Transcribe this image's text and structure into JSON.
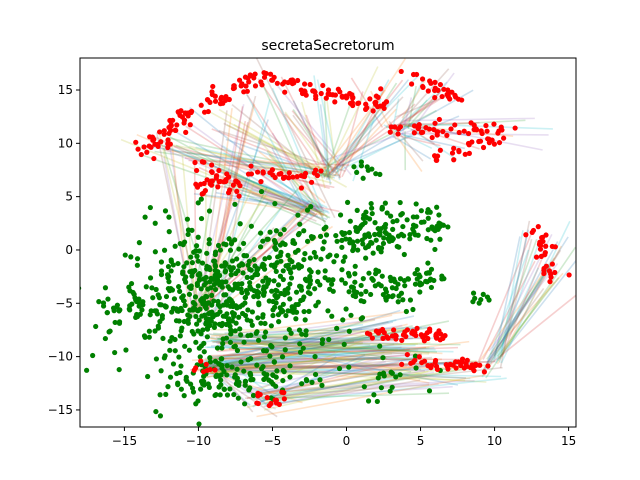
{
  "chart_data": {
    "type": "scatter",
    "title": "secretaSecretorum",
    "xlabel": "",
    "ylabel": "",
    "xlim": [
      -18,
      15.5
    ],
    "ylim": [
      -16.6,
      18
    ],
    "x_ticks": [
      -15,
      -10,
      -5,
      0,
      5,
      10,
      15
    ],
    "y_ticks": [
      -15,
      -10,
      -5,
      0,
      5,
      10,
      15
    ],
    "grid": false,
    "legend": "none",
    "colors": {
      "green_points": "#008000",
      "red_points": "#ff0000",
      "link_palette": [
        "#1f77b4",
        "#ff7f0e",
        "#2ca02c",
        "#d62728",
        "#9467bd",
        "#8c564b",
        "#17becf",
        "#bcbd22"
      ]
    },
    "green_clusters": [
      {
        "cx": -8.5,
        "cy": -5.0,
        "sx": 3.2,
        "sy": 3.6,
        "n": 520
      },
      {
        "cx": -4.0,
        "cy": -2.0,
        "sx": 2.0,
        "sy": 2.5,
        "n": 120
      },
      {
        "cx": 1.5,
        "cy": 1.5,
        "sx": 1.6,
        "sy": 1.4,
        "n": 110
      },
      {
        "cx": 5.5,
        "cy": 2.5,
        "sx": 0.6,
        "sy": 0.8,
        "n": 30
      },
      {
        "cx": 5.2,
        "cy": -2.5,
        "sx": 0.7,
        "sy": 0.6,
        "n": 25
      },
      {
        "cx": 2.0,
        "cy": -3.5,
        "sx": 1.8,
        "sy": 1.2,
        "n": 60
      },
      {
        "cx": -14.0,
        "cy": -5.5,
        "sx": 1.2,
        "sy": 1.0,
        "n": 40
      },
      {
        "cx": -7.0,
        "cy": -12.0,
        "sx": 3.0,
        "sy": 1.0,
        "n": 90
      },
      {
        "cx": 3.0,
        "cy": -11.5,
        "sx": 1.5,
        "sy": 1.0,
        "n": 20
      },
      {
        "cx": 9.0,
        "cy": -4.6,
        "sx": 0.4,
        "sy": 0.3,
        "n": 8
      },
      {
        "cx": 1.0,
        "cy": 7.5,
        "sx": 0.8,
        "sy": 0.5,
        "n": 10
      }
    ],
    "red_arcs": [
      {
        "x0": -13.5,
        "y0": 9.0,
        "x1": -11.0,
        "y1": 12.5,
        "n": 40
      },
      {
        "x0": -11.0,
        "y0": 12.5,
        "x1": -6.0,
        "y1": 16.3,
        "n": 50
      },
      {
        "x0": -6.0,
        "y0": 16.3,
        "x1": -1.0,
        "y1": 14.5,
        "n": 35
      },
      {
        "x0": -1.0,
        "y0": 14.5,
        "x1": 3.0,
        "y1": 13.5,
        "n": 35
      },
      {
        "x0": 4.0,
        "y0": 16.2,
        "x1": 7.5,
        "y1": 14.2,
        "n": 30
      },
      {
        "x0": 3.0,
        "y0": 11.5,
        "x1": 11.0,
        "y1": 11.2,
        "n": 45
      },
      {
        "x0": 6.0,
        "y0": 8.5,
        "x1": 10.0,
        "y1": 10.5,
        "n": 25
      },
      {
        "x0": -10.0,
        "y0": 8.0,
        "x1": -7.0,
        "y1": 5.5,
        "n": 30
      },
      {
        "x0": -6.5,
        "y0": 7.0,
        "x1": -2.0,
        "y1": 7.0,
        "n": 30
      },
      {
        "x0": -10.0,
        "y0": 5.5,
        "x1": -9.5,
        "y1": 6.5,
        "n": 10
      },
      {
        "x0": 12.5,
        "y0": 1.8,
        "x1": 14.2,
        "y1": -2.8,
        "n": 30
      },
      {
        "x0": 2.0,
        "y0": -8.0,
        "x1": 6.5,
        "y1": -8.0,
        "n": 45
      },
      {
        "x0": 4.0,
        "y0": -10.5,
        "x1": 9.5,
        "y1": -11.0,
        "n": 40
      },
      {
        "x0": -6.5,
        "y0": -14.5,
        "x1": -4.0,
        "y1": -13.5,
        "n": 15
      },
      {
        "x0": -10.0,
        "y0": -10.8,
        "x1": -9.0,
        "y1": -11.5,
        "n": 8
      }
    ],
    "link_hubs": [
      {
        "x": -1.0,
        "y": 7.0,
        "targets": [
          [
            -6,
            16
          ],
          [
            -4,
            13
          ],
          [
            -8,
            12
          ],
          [
            -2,
            15
          ],
          [
            1,
            14
          ],
          [
            4,
            16
          ],
          [
            5,
            13
          ],
          [
            -10,
            9
          ],
          [
            -12,
            10
          ]
        ],
        "n": 60
      },
      {
        "x": -1.8,
        "y": 3.5,
        "targets": [
          [
            -11,
            12
          ],
          [
            -9,
            8
          ],
          [
            -6,
            15
          ],
          [
            -13,
            9
          ],
          [
            -5,
            10
          ],
          [
            -8,
            6
          ]
        ],
        "n": 45
      },
      {
        "x": 3.5,
        "y": 11.5,
        "targets": [
          [
            11,
            11
          ],
          [
            9,
            10
          ],
          [
            6,
            9
          ],
          [
            4,
            15
          ],
          [
            7,
            15
          ]
        ],
        "n": 35
      },
      {
        "x": 9.7,
        "y": -10.5,
        "targets": [
          [
            12.5,
            1.8
          ],
          [
            13.2,
            0.8
          ],
          [
            14.0,
            -1.0
          ],
          [
            14.2,
            -2.5
          ],
          [
            13.8,
            0.0
          ]
        ],
        "n": 30
      },
      {
        "x": -9.5,
        "y": -11.0,
        "targets": [
          [
            4,
            -7
          ],
          [
            6,
            -8
          ],
          [
            2,
            -9
          ],
          [
            5,
            -11
          ],
          [
            8,
            -11
          ],
          [
            -5,
            -14
          ],
          [
            3,
            -10
          ]
        ],
        "n": 70
      },
      {
        "x": -10.0,
        "y": -6.0,
        "targets": [
          [
            -12,
            10
          ],
          [
            -10,
            8
          ],
          [
            -7,
            13
          ],
          [
            -6,
            6
          ],
          [
            -3,
            4
          ]
        ],
        "n": 40
      },
      {
        "x": -9.0,
        "y": -8.5,
        "targets": [
          [
            3,
            -7
          ],
          [
            5,
            -9
          ],
          [
            2,
            -8
          ],
          [
            6,
            -10
          ]
        ],
        "n": 40
      },
      {
        "x": -6.0,
        "y": -14.0,
        "targets": [
          [
            4,
            -11
          ],
          [
            6,
            -12
          ],
          [
            2,
            -10
          ],
          [
            9,
            -11
          ]
        ],
        "n": 30
      }
    ]
  }
}
